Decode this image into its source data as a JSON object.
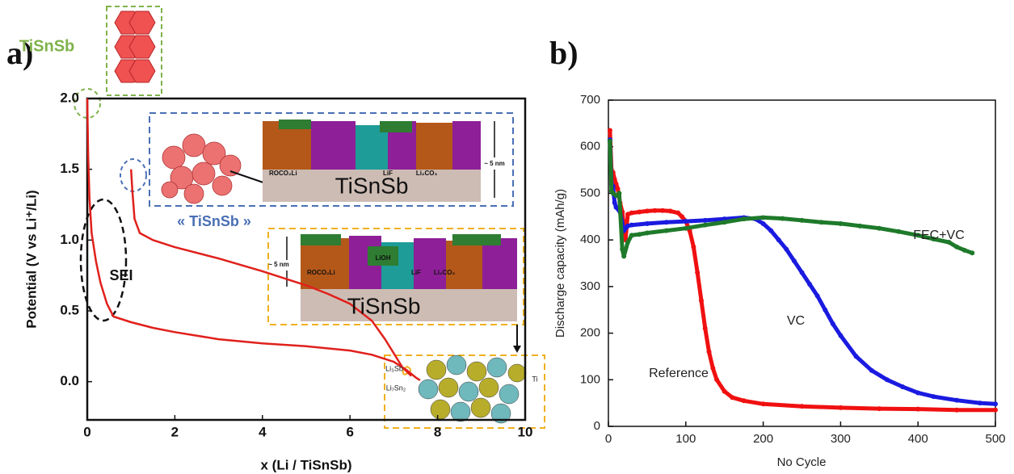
{
  "chart_data": [
    {
      "type": "line",
      "xlabel": "x (Li / TiSnSb)",
      "ylabel": "Potential (V vs Li⁺/Li)",
      "xlim": [
        0,
        10
      ],
      "ylim": [
        -0.27,
        2.0
      ],
      "xticks": [
        0,
        2,
        4,
        6,
        8,
        10
      ],
      "yticks": [
        {
          "value": 0,
          "label": "0.0"
        },
        0.5,
        {
          "value": 1,
          "label": "1.0"
        },
        1.5,
        {
          "value": 2,
          "label": "2.0"
        }
      ],
      "series": [
        {
          "color": "#e0201b",
          "x": [
            0,
            0.02,
            0.05,
            0.1,
            0.2,
            0.3,
            0.45,
            0.6,
            1,
            1.5,
            2,
            3,
            4,
            5,
            6,
            6.5,
            7,
            7.3,
            7.5,
            7.6
          ],
          "values": [
            2.0,
            1.6,
            1.3,
            1.05,
            0.85,
            0.7,
            0.55,
            0.46,
            0.42,
            0.38,
            0.35,
            0.3,
            0.27,
            0.25,
            0.22,
            0.19,
            0.14,
            0.08,
            0.03,
            0.01
          ]
        },
        {
          "color": "#e0201b",
          "x": [
            1,
            1.03,
            1.08,
            1.2,
            1.5,
            2,
            3,
            4,
            5,
            5.5,
            6,
            6.5,
            6.8,
            7,
            7.2,
            7.4
          ],
          "values": [
            1.5,
            1.35,
            1.15,
            1.05,
            1.0,
            0.95,
            0.87,
            0.78,
            0.68,
            0.62,
            0.55,
            0.43,
            0.3,
            0.2,
            0.1,
            0.04
          ]
        }
      ],
      "annotations": [
        "a)",
        "TiSnSb",
        "SEI",
        "« TiSnSb »",
        "TiSnSb",
        "TiSnSb",
        "ROCO₂Li",
        "LiF",
        "Li₂CO₃",
        "~ 5 nm",
        "ROCO₂Li",
        "LiOH",
        "LiF",
        "Li₂CO₃",
        "~ 5 nm",
        "Li₃Sb",
        "Li₇Sn₂",
        "Ti"
      ]
    },
    {
      "type": "scatter",
      "xlabel": "No Cycle",
      "ylabel": "Discharge capacity (mAh/g)",
      "xlim": [
        0,
        500
      ],
      "ylim": [
        0,
        700
      ],
      "xticks": [
        0,
        100,
        200,
        300,
        400,
        500
      ],
      "yticks": [
        0,
        100,
        200,
        300,
        400,
        500,
        600,
        700
      ],
      "series": [
        {
          "color": "#f01010",
          "x": [
            2,
            4,
            6,
            8,
            10,
            12,
            15,
            18,
            22,
            25,
            30,
            40,
            50,
            60,
            70,
            80,
            90,
            95,
            100,
            105,
            110,
            115,
            120,
            125,
            130,
            135,
            140,
            150,
            160,
            175,
            200,
            250,
            300,
            350,
            400,
            450,
            500
          ],
          "values": [
            635,
            550,
            545,
            530,
            520,
            510,
            480,
            460,
            400,
            455,
            458,
            460,
            462,
            463,
            463,
            462,
            458,
            450,
            440,
            420,
            385,
            330,
            270,
            210,
            160,
            125,
            100,
            75,
            62,
            55,
            48,
            43,
            40,
            38,
            37,
            35,
            35
          ]
        },
        {
          "color": "#1a1ae0",
          "x": [
            2,
            4,
            6,
            8,
            10,
            15,
            20,
            25,
            30,
            50,
            75,
            100,
            125,
            150,
            175,
            190,
            200,
            210,
            220,
            230,
            240,
            250,
            260,
            270,
            280,
            290,
            300,
            320,
            340,
            360,
            380,
            400,
            420,
            450,
            480,
            500
          ],
          "values": [
            615,
            520,
            515,
            480,
            470,
            460,
            420,
            430,
            432,
            435,
            438,
            440,
            442,
            445,
            448,
            445,
            435,
            420,
            400,
            380,
            355,
            330,
            305,
            280,
            250,
            220,
            195,
            150,
            120,
            100,
            85,
            72,
            64,
            56,
            50,
            48
          ]
        },
        {
          "color": "#1e7a2a",
          "x": [
            2,
            4,
            6,
            10,
            14,
            18,
            20,
            25,
            30,
            40,
            50,
            75,
            100,
            125,
            150,
            175,
            200,
            225,
            250,
            275,
            300,
            325,
            350,
            375,
            400,
            420,
            440,
            450,
            460,
            470
          ],
          "values": [
            612,
            505,
            500,
            495,
            500,
            380,
            365,
            395,
            410,
            412,
            415,
            420,
            425,
            432,
            438,
            445,
            448,
            446,
            442,
            438,
            435,
            430,
            425,
            418,
            410,
            402,
            395,
            385,
            378,
            372
          ]
        }
      ],
      "annotations": [
        "b)",
        "FEC+VC",
        "VC",
        "Reference"
      ]
    }
  ]
}
